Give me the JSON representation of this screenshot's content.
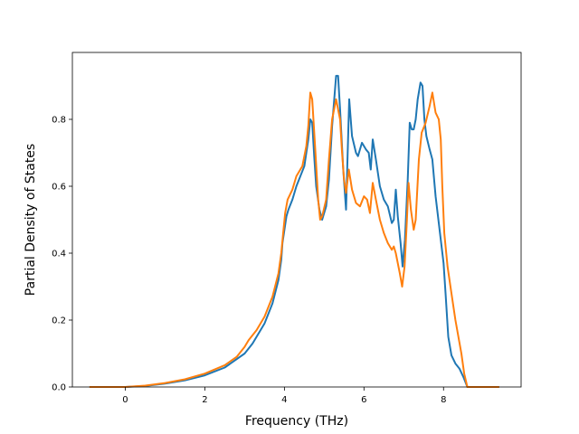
{
  "chart_data": {
    "type": "line",
    "xlabel": "Frequency (THz)",
    "ylabel": "Partial Density of States",
    "xlim": [
      -1.33,
      9.95
    ],
    "ylim": [
      0.0,
      1.0
    ],
    "xticks": [
      {
        "value": 0,
        "label": "0"
      },
      {
        "value": 2,
        "label": "2"
      },
      {
        "value": 4,
        "label": "4"
      },
      {
        "value": 6,
        "label": "6"
      },
      {
        "value": 8,
        "label": "8"
      }
    ],
    "yticks": [
      {
        "value": 0.0,
        "label": "0.0"
      },
      {
        "value": 0.2,
        "label": "0.2"
      },
      {
        "value": 0.4,
        "label": "0.4"
      },
      {
        "value": 0.6,
        "label": "0.6"
      },
      {
        "value": 0.8,
        "label": "0.8"
      }
    ],
    "grid": false,
    "legend": "none",
    "series": [
      {
        "color": "#1f77b4",
        "points": [
          [
            -0.9,
            0.0
          ],
          [
            0.0,
            0.0
          ],
          [
            0.5,
            0.003
          ],
          [
            1.0,
            0.01
          ],
          [
            1.5,
            0.02
          ],
          [
            2.0,
            0.035
          ],
          [
            2.5,
            0.058
          ],
          [
            3.0,
            0.1
          ],
          [
            3.2,
            0.13
          ],
          [
            3.5,
            0.19
          ],
          [
            3.7,
            0.25
          ],
          [
            3.85,
            0.32
          ],
          [
            3.92,
            0.38
          ],
          [
            3.95,
            0.43
          ],
          [
            4.0,
            0.47
          ],
          [
            4.05,
            0.51
          ],
          [
            4.1,
            0.53
          ],
          [
            4.2,
            0.56
          ],
          [
            4.3,
            0.6
          ],
          [
            4.4,
            0.63
          ],
          [
            4.5,
            0.66
          ],
          [
            4.55,
            0.7
          ],
          [
            4.6,
            0.74
          ],
          [
            4.65,
            0.8
          ],
          [
            4.7,
            0.79
          ],
          [
            4.75,
            0.69
          ],
          [
            4.8,
            0.6
          ],
          [
            4.88,
            0.53
          ],
          [
            4.95,
            0.5
          ],
          [
            5.05,
            0.54
          ],
          [
            5.12,
            0.62
          ],
          [
            5.2,
            0.78
          ],
          [
            5.3,
            0.93
          ],
          [
            5.35,
            0.93
          ],
          [
            5.4,
            0.83
          ],
          [
            5.48,
            0.65
          ],
          [
            5.55,
            0.53
          ],
          [
            5.63,
            0.86
          ],
          [
            5.7,
            0.75
          ],
          [
            5.8,
            0.7
          ],
          [
            5.85,
            0.69
          ],
          [
            5.95,
            0.73
          ],
          [
            6.05,
            0.71
          ],
          [
            6.12,
            0.7
          ],
          [
            6.17,
            0.65
          ],
          [
            6.22,
            0.74
          ],
          [
            6.3,
            0.68
          ],
          [
            6.4,
            0.6
          ],
          [
            6.5,
            0.56
          ],
          [
            6.6,
            0.54
          ],
          [
            6.7,
            0.49
          ],
          [
            6.75,
            0.5
          ],
          [
            6.8,
            0.59
          ],
          [
            6.85,
            0.51
          ],
          [
            6.92,
            0.43
          ],
          [
            6.97,
            0.36
          ],
          [
            7.03,
            0.44
          ],
          [
            7.1,
            0.62
          ],
          [
            7.15,
            0.79
          ],
          [
            7.2,
            0.77
          ],
          [
            7.25,
            0.77
          ],
          [
            7.3,
            0.8
          ],
          [
            7.35,
            0.86
          ],
          [
            7.42,
            0.91
          ],
          [
            7.47,
            0.9
          ],
          [
            7.52,
            0.8
          ],
          [
            7.57,
            0.75
          ],
          [
            7.65,
            0.71
          ],
          [
            7.72,
            0.68
          ],
          [
            7.8,
            0.57
          ],
          [
            7.9,
            0.47
          ],
          [
            8.0,
            0.37
          ],
          [
            8.05,
            0.28
          ],
          [
            8.12,
            0.15
          ],
          [
            8.2,
            0.095
          ],
          [
            8.3,
            0.07
          ],
          [
            8.4,
            0.055
          ],
          [
            8.5,
            0.03
          ],
          [
            8.6,
            0.0
          ],
          [
            9.4,
            0.0
          ]
        ]
      },
      {
        "color": "#ff7f0e",
        "points": [
          [
            -0.9,
            0.0
          ],
          [
            0.0,
            0.0
          ],
          [
            0.5,
            0.004
          ],
          [
            1.0,
            0.012
          ],
          [
            1.5,
            0.023
          ],
          [
            2.0,
            0.04
          ],
          [
            2.5,
            0.065
          ],
          [
            2.8,
            0.09
          ],
          [
            3.0,
            0.12
          ],
          [
            3.1,
            0.14
          ],
          [
            3.3,
            0.17
          ],
          [
            3.5,
            0.21
          ],
          [
            3.7,
            0.27
          ],
          [
            3.85,
            0.34
          ],
          [
            3.92,
            0.4
          ],
          [
            3.97,
            0.46
          ],
          [
            4.02,
            0.52
          ],
          [
            4.08,
            0.56
          ],
          [
            4.2,
            0.59
          ],
          [
            4.3,
            0.63
          ],
          [
            4.45,
            0.66
          ],
          [
            4.55,
            0.72
          ],
          [
            4.6,
            0.78
          ],
          [
            4.65,
            0.88
          ],
          [
            4.7,
            0.86
          ],
          [
            4.78,
            0.7
          ],
          [
            4.85,
            0.56
          ],
          [
            4.9,
            0.5
          ],
          [
            4.95,
            0.51
          ],
          [
            5.05,
            0.56
          ],
          [
            5.12,
            0.68
          ],
          [
            5.2,
            0.8
          ],
          [
            5.3,
            0.86
          ],
          [
            5.4,
            0.8
          ],
          [
            5.45,
            0.7
          ],
          [
            5.5,
            0.62
          ],
          [
            5.55,
            0.58
          ],
          [
            5.62,
            0.65
          ],
          [
            5.7,
            0.59
          ],
          [
            5.8,
            0.55
          ],
          [
            5.9,
            0.54
          ],
          [
            6.0,
            0.57
          ],
          [
            6.08,
            0.56
          ],
          [
            6.15,
            0.52
          ],
          [
            6.22,
            0.61
          ],
          [
            6.3,
            0.56
          ],
          [
            6.4,
            0.5
          ],
          [
            6.5,
            0.46
          ],
          [
            6.6,
            0.43
          ],
          [
            6.7,
            0.41
          ],
          [
            6.75,
            0.42
          ],
          [
            6.8,
            0.4
          ],
          [
            6.9,
            0.34
          ],
          [
            6.96,
            0.3
          ],
          [
            7.02,
            0.36
          ],
          [
            7.08,
            0.5
          ],
          [
            7.12,
            0.61
          ],
          [
            7.18,
            0.53
          ],
          [
            7.25,
            0.47
          ],
          [
            7.3,
            0.5
          ],
          [
            7.38,
            0.68
          ],
          [
            7.45,
            0.76
          ],
          [
            7.55,
            0.79
          ],
          [
            7.65,
            0.84
          ],
          [
            7.72,
            0.88
          ],
          [
            7.8,
            0.82
          ],
          [
            7.88,
            0.8
          ],
          [
            7.93,
            0.74
          ],
          [
            7.97,
            0.6
          ],
          [
            8.02,
            0.46
          ],
          [
            8.1,
            0.36
          ],
          [
            8.2,
            0.28
          ],
          [
            8.3,
            0.2
          ],
          [
            8.45,
            0.1
          ],
          [
            8.52,
            0.04
          ],
          [
            8.6,
            0.0
          ],
          [
            9.4,
            0.0
          ]
        ]
      }
    ]
  }
}
